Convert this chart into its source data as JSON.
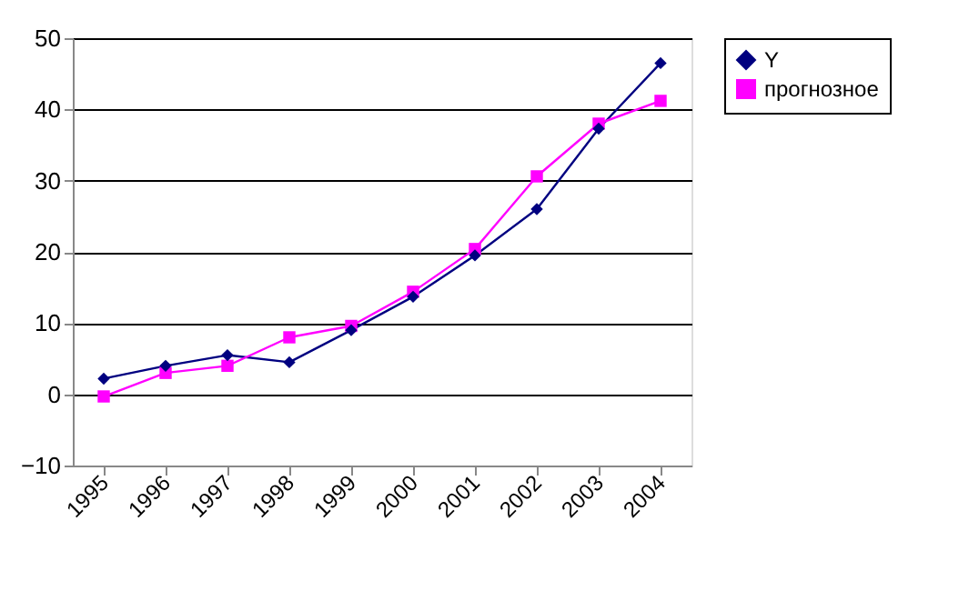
{
  "chart_data": {
    "type": "line",
    "categories": [
      "1995",
      "1996",
      "1997",
      "1998",
      "1999",
      "2000",
      "2001",
      "2002",
      "2003",
      "2004"
    ],
    "series": [
      {
        "name": "Y",
        "color": "#000080",
        "marker": "diamond",
        "values": [
          2.2,
          4.0,
          5.5,
          4.5,
          9.0,
          13.7,
          19.5,
          26.0,
          37.3,
          46.5
        ]
      },
      {
        "name": "прогнозное",
        "color": "#ff00ff",
        "marker": "square",
        "values": [
          -0.3,
          3.0,
          4.0,
          8.0,
          9.6,
          14.4,
          20.4,
          30.6,
          38.0,
          41.2
        ]
      }
    ],
    "ylim": [
      -10,
      50
    ],
    "yticks": [
      -10,
      0,
      10,
      20,
      30,
      40,
      50
    ],
    "grid": "y",
    "legend": "right"
  }
}
